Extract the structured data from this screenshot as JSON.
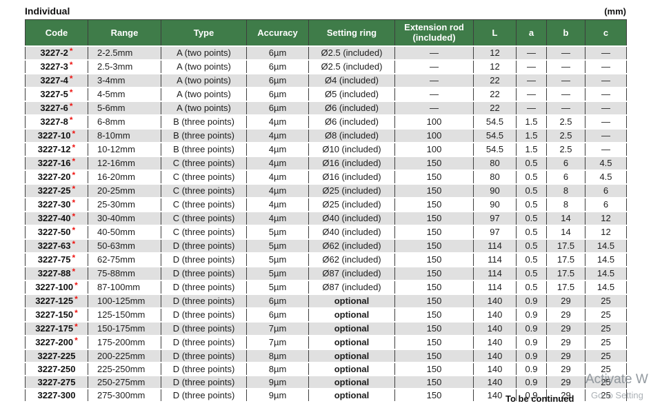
{
  "page": {
    "title": "Individual",
    "unit_label": "(mm)",
    "footer_note": "To be continued",
    "watermark_line1": "Activate W",
    "watermark_line2": "Go to Setting"
  },
  "colors": {
    "header_bg": "#3f7c49",
    "header_text": "#ffffff",
    "row_alt_bg": "#e0e0e0",
    "row_bg": "#ffffff",
    "grid_border": "#3d3d3d",
    "asterisk_red": "#ee1411"
  },
  "table": {
    "columns": [
      {
        "key": "code",
        "label": "Code"
      },
      {
        "key": "range",
        "label": "Range"
      },
      {
        "key": "type",
        "label": "Type"
      },
      {
        "key": "accuracy",
        "label": "Accuracy"
      },
      {
        "key": "setting_ring",
        "label": "Setting ring"
      },
      {
        "key": "extension_rod",
        "label": "Extension rod (included)"
      },
      {
        "key": "L",
        "label": "L"
      },
      {
        "key": "a",
        "label": "a"
      },
      {
        "key": "b",
        "label": "b"
      },
      {
        "key": "c",
        "label": "c"
      }
    ],
    "rows": [
      {
        "code": "3227-2",
        "star": true,
        "range": "2-2.5mm",
        "type": "A (two points)",
        "accuracy": "6µm",
        "setting_ring": "Ø2.5 (included)",
        "setting_ring_bold": false,
        "extension_rod": "—",
        "L": "12",
        "a": "—",
        "b": "—",
        "c": "—"
      },
      {
        "code": "3227-3",
        "star": true,
        "range": "2.5-3mm",
        "type": "A (two points)",
        "accuracy": "6µm",
        "setting_ring": "Ø2.5 (included)",
        "setting_ring_bold": false,
        "extension_rod": "—",
        "L": "12",
        "a": "—",
        "b": "—",
        "c": "—"
      },
      {
        "code": "3227-4",
        "star": true,
        "range": "3-4mm",
        "type": "A (two points)",
        "accuracy": "6µm",
        "setting_ring": "Ø4 (included)",
        "setting_ring_bold": false,
        "extension_rod": "—",
        "L": "22",
        "a": "—",
        "b": "—",
        "c": "—"
      },
      {
        "code": "3227-5",
        "star": true,
        "range": "4-5mm",
        "type": "A (two points)",
        "accuracy": "6µm",
        "setting_ring": "Ø5 (included)",
        "setting_ring_bold": false,
        "extension_rod": "—",
        "L": "22",
        "a": "—",
        "b": "—",
        "c": "—"
      },
      {
        "code": "3227-6",
        "star": true,
        "range": "5-6mm",
        "type": "A (two points)",
        "accuracy": "6µm",
        "setting_ring": "Ø6 (included)",
        "setting_ring_bold": false,
        "extension_rod": "—",
        "L": "22",
        "a": "—",
        "b": "—",
        "c": "—"
      },
      {
        "code": "3227-8",
        "star": true,
        "range": "6-8mm",
        "type": "B (three points)",
        "accuracy": "4µm",
        "setting_ring": "Ø6 (included)",
        "setting_ring_bold": false,
        "extension_rod": "100",
        "L": "54.5",
        "a": "1.5",
        "b": "2.5",
        "c": "—"
      },
      {
        "code": "3227-10",
        "star": true,
        "range": "8-10mm",
        "type": "B (three points)",
        "accuracy": "4µm",
        "setting_ring": "Ø8 (included)",
        "setting_ring_bold": false,
        "extension_rod": "100",
        "L": "54.5",
        "a": "1.5",
        "b": "2.5",
        "c": "—"
      },
      {
        "code": "3227-12",
        "star": true,
        "range": "10-12mm",
        "type": "B (three points)",
        "accuracy": "4µm",
        "setting_ring": "Ø10 (included)",
        "setting_ring_bold": false,
        "extension_rod": "100",
        "L": "54.5",
        "a": "1.5",
        "b": "2.5",
        "c": "—"
      },
      {
        "code": "3227-16",
        "star": true,
        "range": "12-16mm",
        "type": "C (three points)",
        "accuracy": "4µm",
        "setting_ring": "Ø16 (included)",
        "setting_ring_bold": false,
        "extension_rod": "150",
        "L": "80",
        "a": "0.5",
        "b": "6",
        "c": "4.5"
      },
      {
        "code": "3227-20",
        "star": true,
        "range": "16-20mm",
        "type": "C (three points)",
        "accuracy": "4µm",
        "setting_ring": "Ø16 (included)",
        "setting_ring_bold": false,
        "extension_rod": "150",
        "L": "80",
        "a": "0.5",
        "b": "6",
        "c": "4.5"
      },
      {
        "code": "3227-25",
        "star": true,
        "range": "20-25mm",
        "type": "C (three points)",
        "accuracy": "4µm",
        "setting_ring": "Ø25 (included)",
        "setting_ring_bold": false,
        "extension_rod": "150",
        "L": "90",
        "a": "0.5",
        "b": "8",
        "c": "6"
      },
      {
        "code": "3227-30",
        "star": true,
        "range": "25-30mm",
        "type": "C (three points)",
        "accuracy": "4µm",
        "setting_ring": "Ø25 (included)",
        "setting_ring_bold": false,
        "extension_rod": "150",
        "L": "90",
        "a": "0.5",
        "b": "8",
        "c": "6"
      },
      {
        "code": "3227-40",
        "star": true,
        "range": "30-40mm",
        "type": "C (three points)",
        "accuracy": "4µm",
        "setting_ring": "Ø40 (included)",
        "setting_ring_bold": false,
        "extension_rod": "150",
        "L": "97",
        "a": "0.5",
        "b": "14",
        "c": "12"
      },
      {
        "code": "3227-50",
        "star": true,
        "range": "40-50mm",
        "type": "C (three points)",
        "accuracy": "5µm",
        "setting_ring": "Ø40 (included)",
        "setting_ring_bold": false,
        "extension_rod": "150",
        "L": "97",
        "a": "0.5",
        "b": "14",
        "c": "12"
      },
      {
        "code": "3227-63",
        "star": true,
        "range": "50-63mm",
        "type": "D (three points)",
        "accuracy": "5µm",
        "setting_ring": "Ø62 (included)",
        "setting_ring_bold": false,
        "extension_rod": "150",
        "L": "114",
        "a": "0.5",
        "b": "17.5",
        "c": "14.5"
      },
      {
        "code": "3227-75",
        "star": true,
        "range": "62-75mm",
        "type": "D (three points)",
        "accuracy": "5µm",
        "setting_ring": "Ø62 (included)",
        "setting_ring_bold": false,
        "extension_rod": "150",
        "L": "114",
        "a": "0.5",
        "b": "17.5",
        "c": "14.5"
      },
      {
        "code": "3227-88",
        "star": true,
        "range": "75-88mm",
        "type": "D (three points)",
        "accuracy": "5µm",
        "setting_ring": "Ø87 (included)",
        "setting_ring_bold": false,
        "extension_rod": "150",
        "L": "114",
        "a": "0.5",
        "b": "17.5",
        "c": "14.5"
      },
      {
        "code": "3227-100",
        "star": true,
        "range": "87-100mm",
        "type": "D (three points)",
        "accuracy": "5µm",
        "setting_ring": "Ø87 (included)",
        "setting_ring_bold": false,
        "extension_rod": "150",
        "L": "114",
        "a": "0.5",
        "b": "17.5",
        "c": "14.5"
      },
      {
        "code": "3227-125",
        "star": true,
        "range": "100-125mm",
        "type": "D (three points)",
        "accuracy": "6µm",
        "setting_ring": "optional",
        "setting_ring_bold": true,
        "extension_rod": "150",
        "L": "140",
        "a": "0.9",
        "b": "29",
        "c": "25"
      },
      {
        "code": "3227-150",
        "star": true,
        "range": "125-150mm",
        "type": "D (three points)",
        "accuracy": "6µm",
        "setting_ring": "optional",
        "setting_ring_bold": true,
        "extension_rod": "150",
        "L": "140",
        "a": "0.9",
        "b": "29",
        "c": "25"
      },
      {
        "code": "3227-175",
        "star": true,
        "range": "150-175mm",
        "type": "D (three points)",
        "accuracy": "7µm",
        "setting_ring": "optional",
        "setting_ring_bold": true,
        "extension_rod": "150",
        "L": "140",
        "a": "0.9",
        "b": "29",
        "c": "25"
      },
      {
        "code": "3227-200",
        "star": true,
        "range": "175-200mm",
        "type": "D (three points)",
        "accuracy": "7µm",
        "setting_ring": "optional",
        "setting_ring_bold": true,
        "extension_rod": "150",
        "L": "140",
        "a": "0.9",
        "b": "29",
        "c": "25"
      },
      {
        "code": "3227-225",
        "star": false,
        "range": "200-225mm",
        "type": "D (three points)",
        "accuracy": "8µm",
        "setting_ring": "optional",
        "setting_ring_bold": true,
        "extension_rod": "150",
        "L": "140",
        "a": "0.9",
        "b": "29",
        "c": "25"
      },
      {
        "code": "3227-250",
        "star": false,
        "range": "225-250mm",
        "type": "D (three points)",
        "accuracy": "8µm",
        "setting_ring": "optional",
        "setting_ring_bold": true,
        "extension_rod": "150",
        "L": "140",
        "a": "0.9",
        "b": "29",
        "c": "25"
      },
      {
        "code": "3227-275",
        "star": false,
        "range": "250-275mm",
        "type": "D (three points)",
        "accuracy": "9µm",
        "setting_ring": "optional",
        "setting_ring_bold": true,
        "extension_rod": "150",
        "L": "140",
        "a": "0.9",
        "b": "29",
        "c": "25"
      },
      {
        "code": "3227-300",
        "star": false,
        "range": "275-300mm",
        "type": "D (three points)",
        "accuracy": "9µm",
        "setting_ring": "optional",
        "setting_ring_bold": true,
        "extension_rod": "150",
        "L": "140",
        "a": "0.9",
        "b": "29",
        "c": "25"
      }
    ]
  }
}
